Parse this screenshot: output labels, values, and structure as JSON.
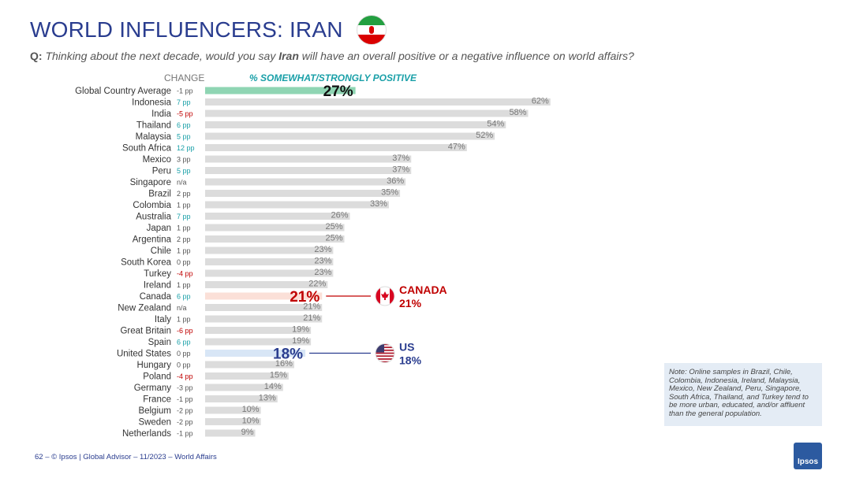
{
  "header": {
    "title": "WORLD INFLUENCERS: IRAN",
    "question_prefix": "Q:",
    "question_part1": "Thinking about the next decade, would you say",
    "question_bold": "Iran",
    "question_part2": "will have an overall positive or a negative influence on world affairs?"
  },
  "column_headers": {
    "change": "CHANGE",
    "positive": "% SOMEWHAT/STRONGLY POSITIVE"
  },
  "colors": {
    "bar": "#dcdcdc",
    "global_bar": "#8fd5b3",
    "canada_bar": "#fbe0d8",
    "us_bar": "#d8e6f6",
    "positive_change": "#1aa0a8",
    "negative_change": "#c00000",
    "neutral_change": "#555555",
    "canada_callout": "#c00000",
    "us_callout": "#2a3d8f"
  },
  "chart_data": {
    "type": "bar",
    "orientation": "horizontal",
    "categories": [
      "Global Country Average",
      "Indonesia",
      "India",
      "Thailand",
      "Malaysia",
      "South Africa",
      "Mexico",
      "Peru",
      "Singapore",
      "Brazil",
      "Colombia",
      "Australia",
      "Japan",
      "Argentina",
      "Chile",
      "South Korea",
      "Turkey",
      "Ireland",
      "Canada",
      "New Zealand",
      "Italy",
      "Great Britain",
      "Spain",
      "United States",
      "Hungary",
      "Poland",
      "Germany",
      "France",
      "Belgium",
      "Sweden",
      "Netherlands"
    ],
    "values": [
      27,
      62,
      58,
      54,
      52,
      47,
      37,
      37,
      36,
      35,
      33,
      26,
      25,
      25,
      23,
      23,
      23,
      22,
      21,
      21,
      21,
      19,
      19,
      18,
      16,
      15,
      14,
      13,
      10,
      10,
      9
    ],
    "value_labels": [
      "27%",
      "62%",
      "58%",
      "54%",
      "52%",
      "47%",
      "37%",
      "37%",
      "36%",
      "35%",
      "33%",
      "26%",
      "25%",
      "25%",
      "23%",
      "23%",
      "23%",
      "22%",
      "21%",
      "21%",
      "21%",
      "19%",
      "19%",
      "18%",
      "16%",
      "15%",
      "14%",
      "13%",
      "10%",
      "10%",
      "9%"
    ],
    "changes": [
      "-1 pp",
      "7 pp",
      "-5 pp",
      "6 pp",
      "5 pp",
      "12 pp",
      "3 pp",
      "5 pp",
      "n/a",
      "2 pp",
      "1 pp",
      "7 pp",
      "1 pp",
      "2 pp",
      "1 pp",
      "0 pp",
      "-4 pp",
      "1 pp",
      "6 pp",
      "n/a",
      "1 pp",
      "-6 pp",
      "6 pp",
      "0 pp",
      "0 pp",
      "-4 pp",
      "-3 pp",
      "-1 pp",
      "-2 pp",
      "-2 pp",
      "-1 pp"
    ],
    "change_direction": [
      "neutral",
      "pos",
      "neg",
      "pos",
      "pos",
      "pos",
      "neutral",
      "pos",
      "neutral",
      "neutral",
      "neutral",
      "pos",
      "neutral",
      "neutral",
      "neutral",
      "neutral",
      "neg",
      "neutral",
      "pos",
      "neutral",
      "neutral",
      "neg",
      "pos",
      "neutral",
      "neutral",
      "neg",
      "neutral",
      "neutral",
      "neutral",
      "neutral",
      "neutral"
    ],
    "highlight": {
      "0": "global",
      "18": "canada",
      "23": "us"
    },
    "xlim": [
      0,
      100
    ]
  },
  "callouts": {
    "canada": {
      "name": "CANADA",
      "value": "21%",
      "flag_icon": "canada-flag-icon"
    },
    "us": {
      "name": "US",
      "value": "18%",
      "flag_icon": "us-flag-icon"
    }
  },
  "note": "Note: Online samples in Brazil, Chile, Colombia, Indonesia, Ireland, Malaysia, Mexico, New Zealand, Peru, Singapore, South Africa, Thailand, and Turkey tend to be more urban, educated, and/or affluent than the general population.",
  "footer": {
    "text": "62 –   © Ipsos | Global Advisor – 11/2023 – World Affairs",
    "logo": "Ipsos"
  }
}
